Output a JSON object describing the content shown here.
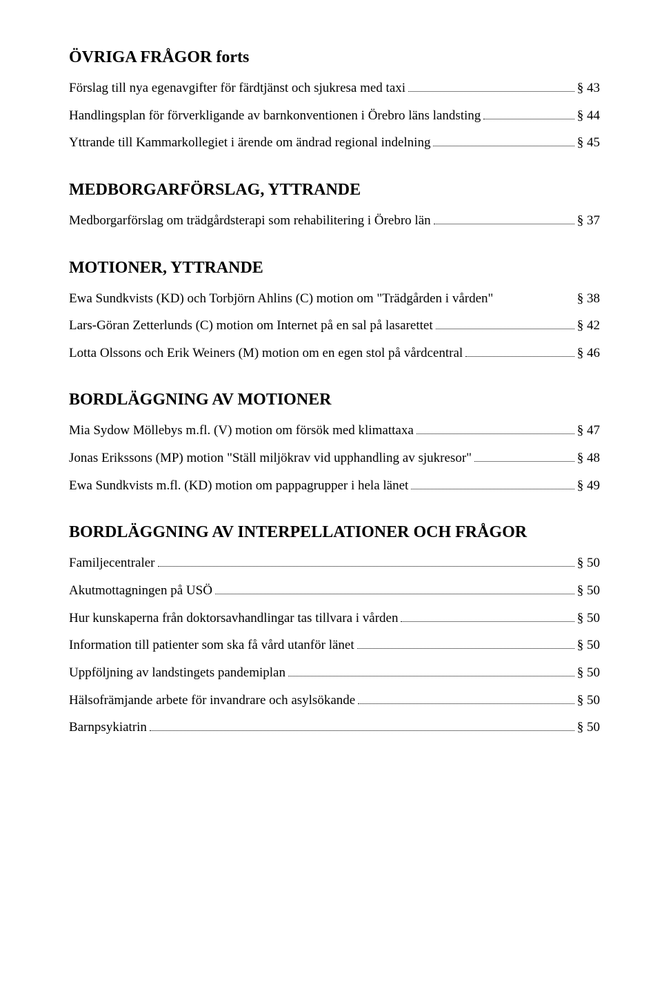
{
  "headings": {
    "main": "ÖVRIGA FRÅGOR forts",
    "medborgar": "MEDBORGARFÖRSLAG, YTTRANDE",
    "motioner": "MOTIONER, YTTRANDE",
    "bordl_motioner": "BORDLÄGGNING AV MOTIONER",
    "bordl_interp": "BORDLÄGGNING AV INTERPELLATIONER OCH FRÅGOR"
  },
  "entries": {
    "ovriga": [
      {
        "text": "Förslag till nya egenavgifter för färdtjänst och sjukresa med taxi",
        "ref": "§ 43"
      },
      {
        "text": "Handlingsplan för förverkligande av barnkonventionen i Örebro läns landsting",
        "ref": "§ 44"
      },
      {
        "text": "Yttrande till Kammarkollegiet i ärende om ändrad regional indelning",
        "ref": "§ 45"
      }
    ],
    "medborgar": [
      {
        "text": "Medborgarförslag om trädgårdsterapi som rehabilitering i Örebro län",
        "ref": "§ 37"
      }
    ],
    "motioner": [
      {
        "text": "Ewa Sundkvists (KD) och Torbjörn Ahlins (C) motion om \"Trädgården i vården\"",
        "ref": "§ 38",
        "nodots": true
      },
      {
        "text": "Lars-Göran Zetterlunds (C) motion om Internet på en sal på lasarettet",
        "ref": "§ 42"
      },
      {
        "text": "Lotta Olssons och Erik Weiners (M) motion om en egen stol på vårdcentral",
        "ref": "§ 46"
      }
    ],
    "bordl_motioner": [
      {
        "text": "Mia Sydow Möllebys m.fl. (V) motion om försök med klimattaxa",
        "ref": "§ 47"
      },
      {
        "text": "Jonas Erikssons (MP) motion \"Ställ miljökrav vid upphandling av sjukresor\"",
        "ref": "§ 48"
      },
      {
        "text": "Ewa Sundkvists m.fl. (KD) motion om pappagrupper i hela länet",
        "ref": "§ 49"
      }
    ],
    "bordl_interp": [
      {
        "text": "Familjecentraler",
        "ref": "§ 50"
      },
      {
        "text": "Akutmottagningen på USÖ",
        "ref": "§ 50"
      },
      {
        "text": "Hur kunskaperna från doktorsavhandlingar tas tillvara i vården",
        "ref": "§ 50"
      },
      {
        "text": "Information till patienter som ska få vård utanför länet",
        "ref": "§ 50"
      },
      {
        "text": "Uppföljning av landstingets pandemiplan",
        "ref": "§ 50"
      },
      {
        "text": "Hälsofrämjande arbete för invandrare och asylsökande",
        "ref": "§ 50"
      },
      {
        "text": "Barnpsykiatrin",
        "ref": "§ 50"
      }
    ]
  }
}
